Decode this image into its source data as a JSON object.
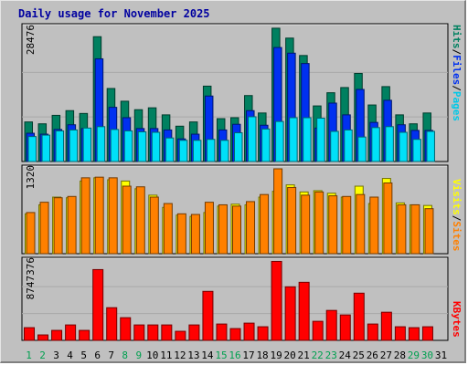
{
  "title": "Daily usage for November 2025",
  "chart_data": [
    {
      "type": "bar",
      "panel": "hits-files-pages",
      "max_label": "28476",
      "ymax": 28476,
      "legend": [
        "Pages",
        "/",
        "Files",
        "/",
        "Hits"
      ],
      "legend_colors": [
        "#00c8e8",
        "#000000",
        "#0030f0",
        "#000000",
        "#008060"
      ],
      "categories": [
        "1",
        "2",
        "3",
        "4",
        "5",
        "6",
        "7",
        "8",
        "9",
        "10",
        "11",
        "12",
        "13",
        "14",
        "15",
        "16",
        "17",
        "18",
        "19",
        "20",
        "21",
        "22",
        "23",
        "24",
        "25",
        "26",
        "27",
        "28",
        "29",
        "30",
        "31"
      ],
      "weekend_days": [
        "1",
        "2",
        "8",
        "9",
        "15",
        "16",
        "22",
        "23",
        "29",
        "30"
      ],
      "series": [
        {
          "name": "Hits",
          "color": "#008060",
          "values": [
            8400,
            8000,
            9800,
            10800,
            10200,
            26500,
            15500,
            12800,
            11000,
            11400,
            9900,
            7500,
            8400,
            16000,
            9100,
            9300,
            14000,
            10300,
            28300,
            26200,
            22500,
            11800,
            14600,
            15700,
            18700,
            12000,
            15900,
            9900,
            8000,
            10300,
            0
          ]
        },
        {
          "name": "Files",
          "color": "#0030f0",
          "values": [
            6000,
            5800,
            6800,
            7800,
            7000,
            21800,
            11500,
            9300,
            7000,
            7000,
            6700,
            4800,
            5800,
            13900,
            6700,
            7900,
            10800,
            7700,
            24200,
            23000,
            20800,
            7100,
            12400,
            9900,
            15300,
            8300,
            13000,
            7800,
            6600,
            6600,
            0
          ]
        },
        {
          "name": "Pages",
          "color": "#00e0f8",
          "values": [
            5300,
            5600,
            6500,
            6700,
            7100,
            7400,
            6800,
            6500,
            6300,
            6200,
            5000,
            4500,
            4500,
            4700,
            4500,
            6100,
            9500,
            6900,
            8500,
            9300,
            9300,
            9200,
            6400,
            6700,
            5200,
            7200,
            7400,
            6200,
            4700,
            6400,
            0
          ]
        }
      ]
    },
    {
      "type": "bar",
      "panel": "visits-sites",
      "max_label": "1320",
      "ymax": 1320,
      "legend": [
        "Sites",
        "/",
        "Visits"
      ],
      "legend_colors": [
        "#ff8000",
        "#000000",
        "#ffff00"
      ],
      "categories": [
        "1",
        "2",
        "3",
        "4",
        "5",
        "6",
        "7",
        "8",
        "9",
        "10",
        "11",
        "12",
        "13",
        "14",
        "15",
        "16",
        "17",
        "18",
        "19",
        "20",
        "21",
        "22",
        "23",
        "24",
        "25",
        "26",
        "27",
        "28",
        "29",
        "30",
        "31"
      ],
      "series": [
        {
          "name": "Visits",
          "color": "#ffff00",
          "values": [
            620,
            760,
            880,
            870,
            1130,
            1180,
            1150,
            1130,
            1010,
            910,
            720,
            600,
            580,
            640,
            740,
            770,
            760,
            880,
            970,
            1070,
            960,
            980,
            940,
            880,
            1050,
            780,
            1170,
            790,
            760,
            750,
            0
          ]
        },
        {
          "name": "Sites",
          "color": "#ff8000",
          "values": [
            640,
            800,
            870,
            890,
            1180,
            1190,
            1180,
            1050,
            1040,
            880,
            780,
            620,
            610,
            800,
            760,
            740,
            810,
            920,
            1320,
            1030,
            910,
            960,
            900,
            890,
            920,
            880,
            1100,
            760,
            760,
            700,
            0
          ]
        }
      ]
    },
    {
      "type": "bar",
      "panel": "kbytes",
      "max_label": "8747376",
      "ymax": 8747376,
      "legend": [
        "KBytes"
      ],
      "legend_colors": [
        "#ff0000"
      ],
      "categories": [
        "1",
        "2",
        "3",
        "4",
        "5",
        "6",
        "7",
        "8",
        "9",
        "10",
        "11",
        "12",
        "13",
        "14",
        "15",
        "16",
        "17",
        "18",
        "19",
        "20",
        "21",
        "22",
        "23",
        "24",
        "25",
        "26",
        "27",
        "28",
        "29",
        "30",
        "31"
      ],
      "series": [
        {
          "name": "KBytes",
          "color": "#ff0000",
          "values": [
            1400000,
            600000,
            1100000,
            1700000,
            1100000,
            7800000,
            3600000,
            2500000,
            1700000,
            1700000,
            1700000,
            1000000,
            1700000,
            5400000,
            1800000,
            1300000,
            1900000,
            1500000,
            8700000,
            5900000,
            6400000,
            2100000,
            3300000,
            2800000,
            5200000,
            1800000,
            3100000,
            1500000,
            1400000,
            1500000,
            0
          ]
        }
      ]
    }
  ]
}
